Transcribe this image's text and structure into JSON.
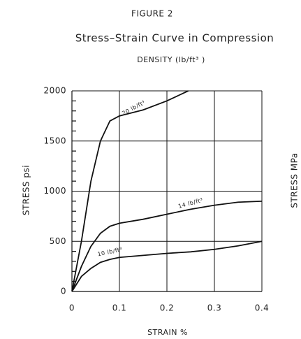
{
  "chart_data": {
    "type": "line",
    "title": "FIGURE 2",
    "subtitle": "Stress–Strain Curve in Compression",
    "legend_title": "DENSITY (lb/ft³ )",
    "x_label": "STRAIN %",
    "y_label": "STRESS psi",
    "y2_label": "STRESS MPa",
    "xlim": [
      0,
      0.4
    ],
    "ylim": [
      0,
      2000
    ],
    "xticks": [
      0,
      0.1,
      0.2,
      0.3,
      0.4
    ],
    "yticks": [
      0,
      500,
      1000,
      1500,
      2000
    ],
    "yminorticks": [
      100,
      200,
      300,
      400,
      600,
      700,
      800,
      900,
      1100,
      1200,
      1300,
      1400,
      1600,
      1700,
      1800,
      1900
    ],
    "grid": true,
    "series": [
      {
        "name": "20 lb/ft³",
        "color": "#111111",
        "x": [
          0,
          0.02,
          0.04,
          0.06,
          0.08,
          0.1,
          0.15,
          0.2,
          0.245
        ],
        "values": [
          0,
          500,
          1100,
          1500,
          1700,
          1750,
          1810,
          1900,
          2000
        ]
      },
      {
        "name": "14 lb/ft³",
        "color": "#111111",
        "x": [
          0,
          0.02,
          0.04,
          0.06,
          0.08,
          0.1,
          0.15,
          0.2,
          0.25,
          0.3,
          0.35,
          0.4
        ],
        "values": [
          0,
          250,
          450,
          580,
          650,
          680,
          720,
          770,
          820,
          860,
          890,
          900
        ]
      },
      {
        "name": "10 lb/ft³",
        "color": "#111111",
        "x": [
          0,
          0.02,
          0.04,
          0.06,
          0.08,
          0.1,
          0.15,
          0.2,
          0.25,
          0.3,
          0.35,
          0.4
        ],
        "values": [
          0,
          150,
          230,
          290,
          320,
          340,
          360,
          380,
          395,
          420,
          455,
          500
        ]
      }
    ]
  }
}
